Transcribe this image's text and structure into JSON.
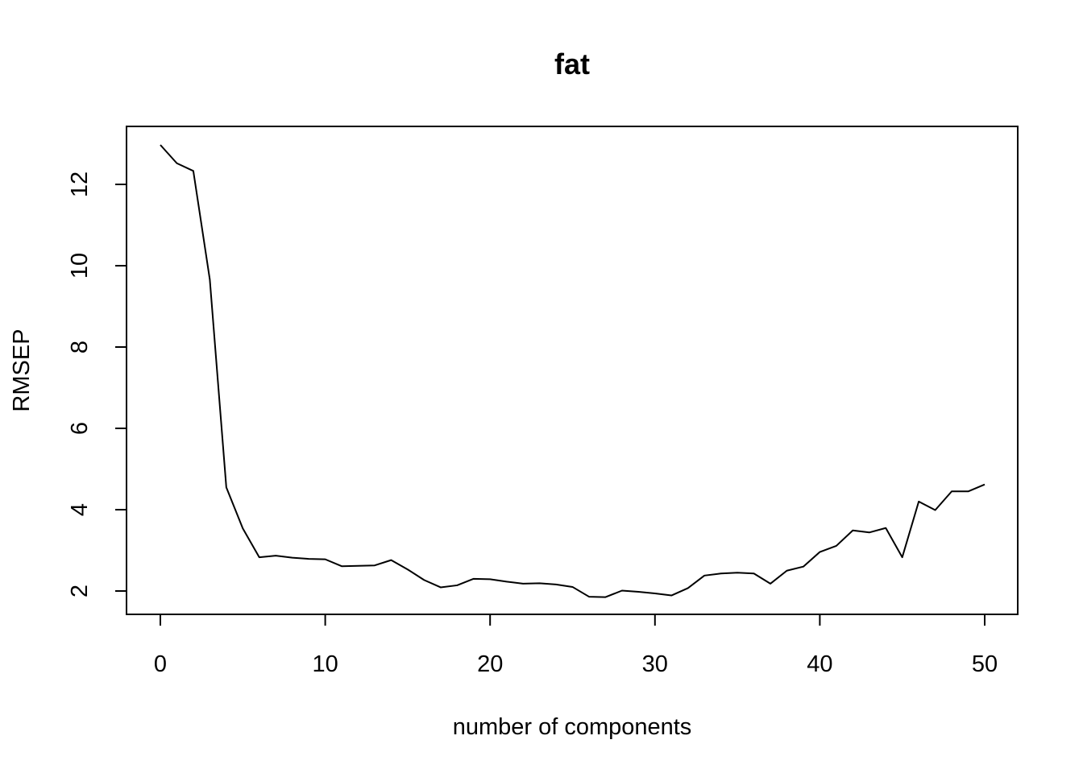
{
  "chart_data": {
    "type": "line",
    "title": "fat",
    "xlabel": "number of components",
    "ylabel": "RMSEP",
    "xlim": [
      0,
      50
    ],
    "ylim": [
      2,
      12
    ],
    "x_ticks": [
      0,
      10,
      20,
      30,
      40,
      50
    ],
    "y_ticks": [
      2,
      4,
      6,
      8,
      10,
      12
    ],
    "grid": false,
    "legend": "none",
    "line_color": "#000000",
    "x": [
      0,
      1,
      2,
      3,
      4,
      5,
      6,
      7,
      8,
      9,
      10,
      11,
      12,
      13,
      14,
      15,
      16,
      17,
      18,
      19,
      20,
      21,
      22,
      23,
      24,
      25,
      26,
      27,
      28,
      29,
      30,
      31,
      32,
      33,
      34,
      35,
      36,
      37,
      38,
      39,
      40,
      41,
      42,
      43,
      44,
      45,
      46,
      47,
      48,
      49,
      50
    ],
    "y": [
      12.97,
      12.52,
      12.33,
      9.66,
      4.55,
      3.54,
      2.83,
      2.87,
      2.82,
      2.79,
      2.78,
      2.61,
      2.62,
      2.63,
      2.76,
      2.53,
      2.27,
      2.09,
      2.14,
      2.3,
      2.29,
      2.23,
      2.18,
      2.19,
      2.16,
      2.1,
      1.86,
      1.85,
      2.01,
      1.98,
      1.94,
      1.89,
      2.07,
      2.38,
      2.43,
      2.45,
      2.43,
      2.18,
      2.5,
      2.6,
      2.96,
      3.11,
      3.49,
      3.44,
      3.55,
      2.83,
      4.2,
      3.99,
      4.45,
      4.45,
      4.62
    ]
  }
}
